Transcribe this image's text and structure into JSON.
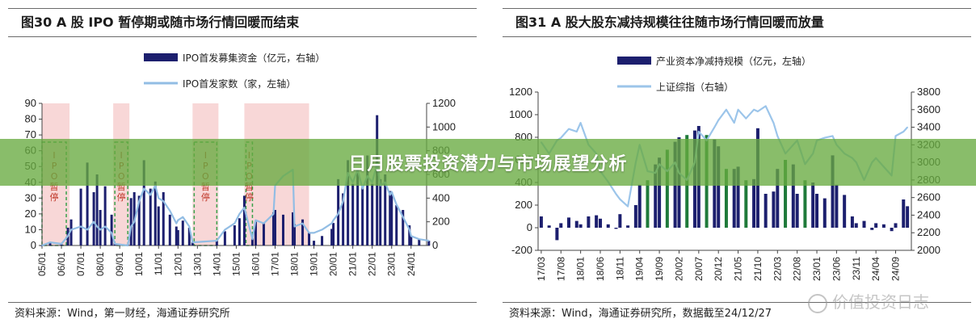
{
  "banner": {
    "title": "日月股票投资潜力与市场展望分析"
  },
  "watermark": {
    "text": "价值投资日志"
  },
  "left": {
    "fig_title": "图30 A 股 IPO 暂停期或随市场行情回暖而结束",
    "source": "资料来源：Wind，第一财经，海通证券研究所",
    "chart_data": {
      "type": "bar",
      "title": "图30 A 股 IPO 暂停期或随市场行情回暖而结束",
      "legend_placement": "top-center",
      "y_left": {
        "ylim": [
          0,
          90
        ],
        "ticks": [
          0,
          10,
          20,
          30,
          40,
          50,
          60,
          70,
          80,
          90
        ]
      },
      "y_right": {
        "ylim": [
          0,
          1200
        ],
        "ticks": [
          0,
          200,
          400,
          600,
          800,
          1000,
          1200
        ]
      },
      "x_ticks": [
        "05/01",
        "06/01",
        "07/01",
        "08/01",
        "09/01",
        "10/01",
        "11/01",
        "12/01",
        "13/01",
        "14/01",
        "15/01",
        "16/01",
        "17/01",
        "18/01",
        "19/01",
        "20/01",
        "21/01",
        "22/01",
        "23/01",
        "24/01"
      ],
      "pause_label": "IPO暂停",
      "pause_periods": [
        [
          "05/01",
          "06/04"
        ],
        [
          "08/10",
          "09/06"
        ],
        [
          "12/11",
          "14/01"
        ],
        [
          "15/07",
          "15/11"
        ]
      ],
      "shaded_periods": [
        [
          "05/01",
          "06/06"
        ],
        [
          "08/09",
          "09/07"
        ],
        [
          "12/10",
          "14/02"
        ],
        [
          "15/06",
          "18/10"
        ]
      ],
      "series": [
        {
          "name": "IPO首发募集资金（亿元，右轴）",
          "axis": "right",
          "kind": "bar",
          "color": "#1c1f6e",
          "x": [
            "05/01",
            "05/06",
            "06/01",
            "06/05",
            "06/07",
            "07/01",
            "07/05",
            "07/09",
            "07/11",
            "08/01",
            "08/04",
            "08/08",
            "08/10",
            "09/06",
            "09/08",
            "09/10",
            "10/01",
            "10/04",
            "10/08",
            "10/11",
            "11/01",
            "11/04",
            "11/08",
            "11/12",
            "12/01",
            "12/04",
            "12/08",
            "12/10",
            "14/01",
            "14/06",
            "14/12",
            "15/03",
            "15/06",
            "15/11",
            "16/01",
            "16/06",
            "16/12",
            "17/01",
            "17/06",
            "17/12",
            "18/01",
            "18/06",
            "18/10",
            "19/01",
            "19/06",
            "19/12",
            "20/01",
            "20/04",
            "20/07",
            "20/10",
            "21/01",
            "21/04",
            "21/07",
            "21/10",
            "22/01",
            "22/04",
            "22/06",
            "22/09",
            "22/12",
            "23/01",
            "23/04",
            "23/08",
            "23/12",
            "24/01",
            "24/06",
            "24/12"
          ],
          "y": [
            0,
            30,
            10,
            150,
            220,
            480,
            700,
            450,
            600,
            300,
            500,
            260,
            20,
            10,
            400,
            450,
            420,
            720,
            480,
            540,
            330,
            450,
            260,
            160,
            130,
            210,
            150,
            30,
            40,
            120,
            170,
            230,
            420,
            60,
            200,
            190,
            280,
            300,
            260,
            280,
            180,
            220,
            110,
            40,
            80,
            140,
            190,
            560,
            440,
            720,
            520,
            630,
            490,
            760,
            520,
            1100,
            560,
            600,
            460,
            450,
            340,
            300,
            170,
            80,
            50,
            40
          ]
        },
        {
          "name": "IPO首发家数（家，左轴）",
          "axis": "left",
          "kind": "line",
          "color": "#92bde4",
          "x": [
            "05/01",
            "05/06",
            "06/01",
            "06/05",
            "06/07",
            "07/01",
            "07/05",
            "07/09",
            "07/11",
            "08/01",
            "08/04",
            "08/08",
            "08/10",
            "09/06",
            "09/08",
            "09/10",
            "10/01",
            "10/04",
            "10/08",
            "10/11",
            "11/01",
            "11/04",
            "11/08",
            "11/12",
            "12/01",
            "12/04",
            "12/08",
            "12/10",
            "14/01",
            "14/06",
            "14/12",
            "15/03",
            "15/06",
            "15/11",
            "16/01",
            "16/06",
            "16/12",
            "17/01",
            "17/06",
            "17/12",
            "18/01",
            "18/06",
            "18/10",
            "19/01",
            "19/06",
            "19/12",
            "20/01",
            "20/04",
            "20/07",
            "20/10",
            "21/01",
            "21/04",
            "21/07",
            "21/10",
            "22/01",
            "22/04",
            "22/06",
            "22/09",
            "22/12",
            "23/01",
            "23/04",
            "23/08",
            "23/12",
            "24/01",
            "24/06",
            "24/12"
          ],
          "y": [
            0,
            2,
            1,
            6,
            10,
            12,
            10,
            15,
            12,
            10,
            12,
            8,
            1,
            0,
            12,
            15,
            28,
            36,
            32,
            38,
            30,
            28,
            22,
            14,
            16,
            18,
            12,
            2,
            3,
            10,
            14,
            20,
            24,
            4,
            16,
            14,
            20,
            38,
            44,
            48,
            12,
            14,
            8,
            8,
            10,
            14,
            16,
            20,
            28,
            46,
            40,
            48,
            36,
            44,
            40,
            52,
            38,
            40,
            32,
            34,
            26,
            18,
            10,
            6,
            4,
            3
          ]
        }
      ]
    }
  },
  "right": {
    "fig_title": "图31 A 股大股东减持规模往往随市场行情回暖而放量",
    "source": "资料来源：Wind，海通证券研究所，数据截至24/12/27",
    "chart_data": {
      "type": "bar",
      "title": "图31 A 股大股东减持规模往往随市场行情回暖而放量",
      "legend_placement": "top-center",
      "y_left": {
        "ylim": [
          -200,
          1200
        ],
        "ticks": [
          -200,
          0,
          200,
          400,
          600,
          800,
          1000,
          1200
        ]
      },
      "y_right": {
        "ylim": [
          2000,
          3800
        ],
        "ticks": [
          2000,
          2200,
          2400,
          2600,
          2800,
          3000,
          3200,
          3400,
          3600,
          3800
        ]
      },
      "x_ticks": [
        "17/03",
        "17/08",
        "18/01",
        "18/06",
        "18/11",
        "19/04",
        "19/09",
        "20/02",
        "20/07",
        "20/12",
        "21/05",
        "21/10",
        "22/03",
        "22/08",
        "23/01",
        "23/06",
        "23/11",
        "24/04",
        "24/09"
      ],
      "series": [
        {
          "name": "产业资本净减持规模（亿元，左轴）",
          "axis": "left",
          "kind": "bar",
          "color": "#1c1f6e",
          "highlight_color": "#1f7a3a",
          "x": [
            "17/03",
            "17/05",
            "17/07",
            "17/08",
            "17/10",
            "17/12",
            "18/01",
            "18/03",
            "18/05",
            "18/06",
            "18/08",
            "18/10",
            "18/11",
            "19/01",
            "19/03",
            "19/04",
            "19/06",
            "19/08",
            "19/09",
            "19/11",
            "20/01",
            "20/02",
            "20/04",
            "20/06",
            "20/07",
            "20/09",
            "20/11",
            "20/12",
            "21/02",
            "21/04",
            "21/05",
            "21/07",
            "21/09",
            "21/10",
            "21/12",
            "22/02",
            "22/03",
            "22/05",
            "22/07",
            "22/08",
            "22/10",
            "22/12",
            "23/01",
            "23/03",
            "23/05",
            "23/06",
            "23/08",
            "23/10",
            "23/11",
            "24/01",
            "24/03",
            "24/04",
            "24/06",
            "24/08",
            "24/09",
            "24/11",
            "24/12"
          ],
          "y": [
            100,
            20,
            -110,
            40,
            90,
            60,
            30,
            100,
            110,
            80,
            30,
            -10,
            120,
            20,
            200,
            380,
            420,
            560,
            620,
            690,
            760,
            800,
            820,
            860,
            900,
            820,
            780,
            720,
            520,
            520,
            540,
            420,
            430,
            880,
            300,
            320,
            520,
            600,
            560,
            300,
            420,
            400,
            300,
            260,
            640,
            380,
            290,
            100,
            40,
            60,
            -20,
            40,
            30,
            -30,
            40,
            250,
            190
          ]
        },
        {
          "name": "上证综指（右轴）",
          "axis": "right",
          "kind": "line",
          "color": "#9cc5ea",
          "x": [
            "17/03",
            "17/05",
            "17/07",
            "17/08",
            "17/10",
            "17/12",
            "18/01",
            "18/03",
            "18/05",
            "18/06",
            "18/08",
            "18/10",
            "18/11",
            "19/01",
            "19/03",
            "19/04",
            "19/06",
            "19/08",
            "19/09",
            "19/11",
            "20/01",
            "20/02",
            "20/04",
            "20/06",
            "20/07",
            "20/09",
            "20/11",
            "20/12",
            "21/02",
            "21/04",
            "21/05",
            "21/07",
            "21/09",
            "21/10",
            "21/12",
            "22/02",
            "22/03",
            "22/05",
            "22/07",
            "22/08",
            "22/10",
            "22/12",
            "23/01",
            "23/03",
            "23/05",
            "23/06",
            "23/08",
            "23/10",
            "23/11",
            "24/01",
            "24/03",
            "24/04",
            "24/06",
            "24/08",
            "24/09",
            "24/11",
            "24/12"
          ],
          "y": [
            3230,
            3100,
            3250,
            3280,
            3380,
            3350,
            3450,
            3200,
            3100,
            2900,
            2780,
            2640,
            2580,
            2500,
            3000,
            3200,
            2900,
            2880,
            2980,
            2900,
            3000,
            2880,
            2800,
            3000,
            3350,
            3250,
            3400,
            3480,
            3600,
            3450,
            3600,
            3500,
            3600,
            3580,
            3640,
            3450,
            3300,
            3100,
            3200,
            3250,
            2980,
            3100,
            3250,
            3280,
            3300,
            3200,
            3100,
            3050,
            3000,
            2800,
            3000,
            3050,
            2950,
            2850,
            3300,
            3350,
            3400
          ]
        }
      ]
    }
  }
}
